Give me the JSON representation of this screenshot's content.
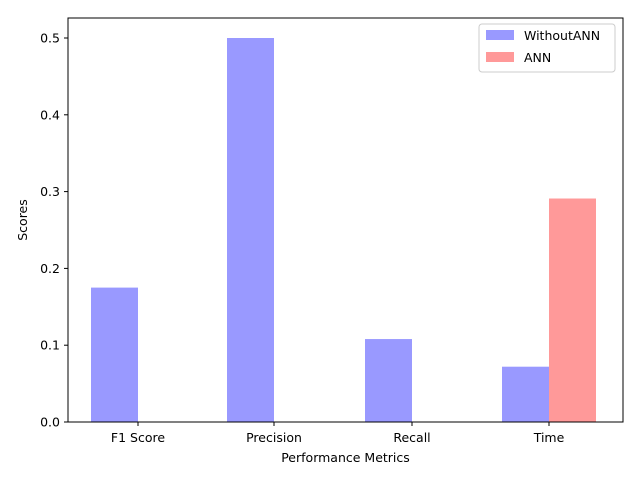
{
  "chart_data": {
    "type": "bar",
    "categories": [
      "F1 Score",
      "Precision",
      "Recall",
      "Time"
    ],
    "series": [
      {
        "name": "WithoutANN",
        "color": "#9999ff",
        "values": [
          0.175,
          0.5,
          0.108,
          0.072
        ]
      },
      {
        "name": "ANN",
        "color": "#ff9999",
        "values": [
          0,
          0,
          0,
          0.291
        ]
      }
    ],
    "xlabel": "Performance Metrics",
    "ylabel": "Scores",
    "ylim": [
      0,
      0.5
    ],
    "yticks": [
      "0.0",
      "0.1",
      "0.2",
      "0.3",
      "0.4",
      "0.5"
    ],
    "grid": false,
    "legend_position": "top-right"
  }
}
